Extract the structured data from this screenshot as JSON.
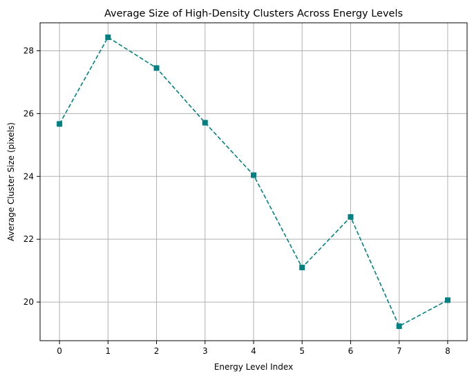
{
  "chart_data": {
    "type": "line",
    "title": "Average Size of High-Density Clusters Across Energy Levels",
    "xlabel": "Energy Level Index",
    "ylabel": "Average Cluster Size (pixels)",
    "x": [
      0,
      1,
      2,
      3,
      4,
      5,
      6,
      7,
      8
    ],
    "series": [
      {
        "values": [
          25.67,
          28.43,
          27.45,
          25.71,
          24.04,
          21.1,
          22.71,
          19.23,
          20.06
        ],
        "color": "#008080",
        "linestyle": "dashed",
        "marker": "square"
      }
    ],
    "xticks": [
      0,
      1,
      2,
      3,
      4,
      5,
      6,
      7,
      8
    ],
    "yticks": [
      20,
      22,
      24,
      26,
      28
    ],
    "xlim": [
      -0.4,
      8.4
    ],
    "ylim": [
      18.77,
      28.89
    ],
    "grid": true,
    "legend": false
  }
}
